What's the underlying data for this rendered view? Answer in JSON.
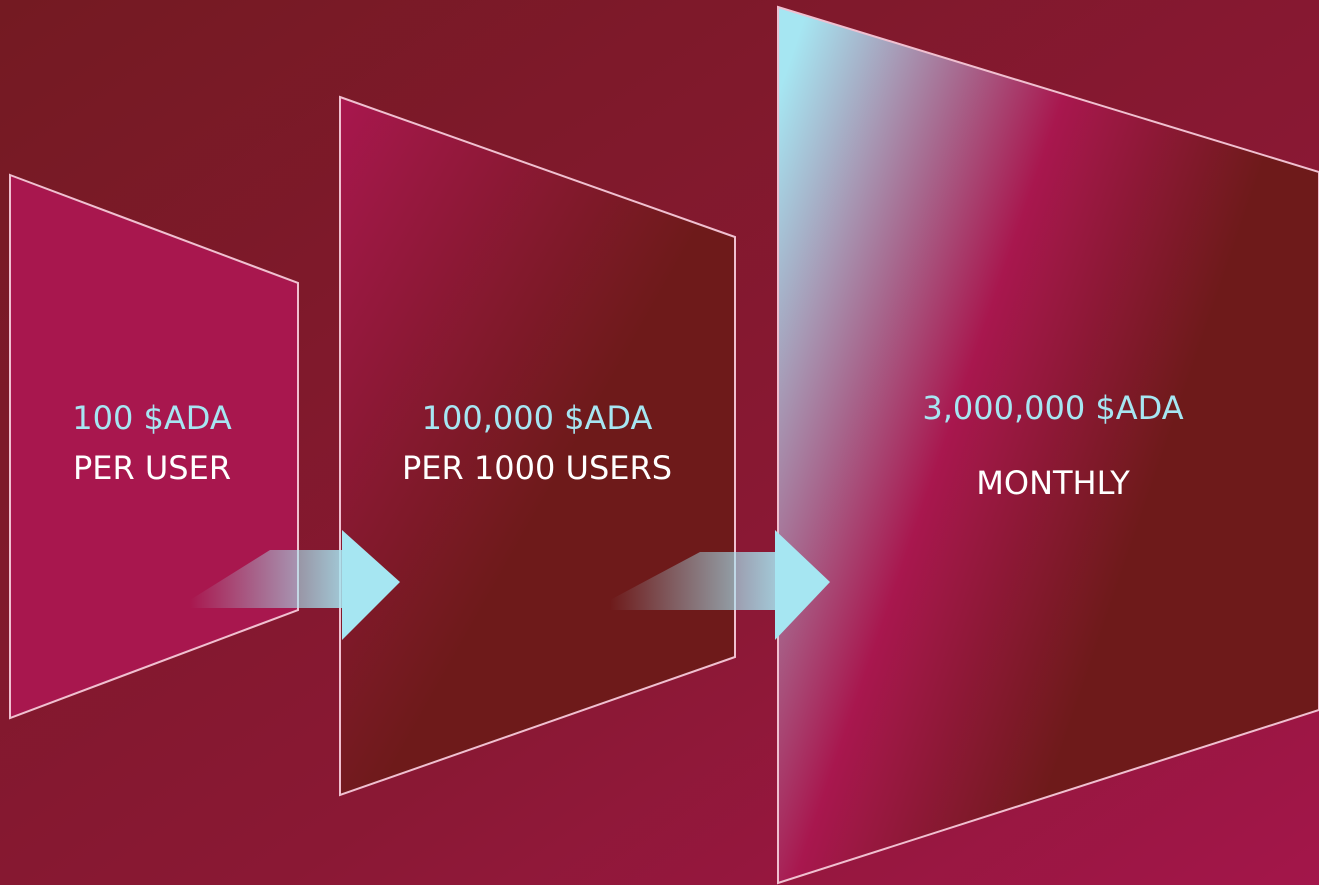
{
  "panels": [
    {
      "amount": "100 $ADA",
      "caption": "PER USER"
    },
    {
      "amount": "100,000 $ADA",
      "caption": "PER 1000 USERS"
    },
    {
      "amount": "3,000,000 $ADA",
      "caption": "MONTHLY"
    }
  ]
}
